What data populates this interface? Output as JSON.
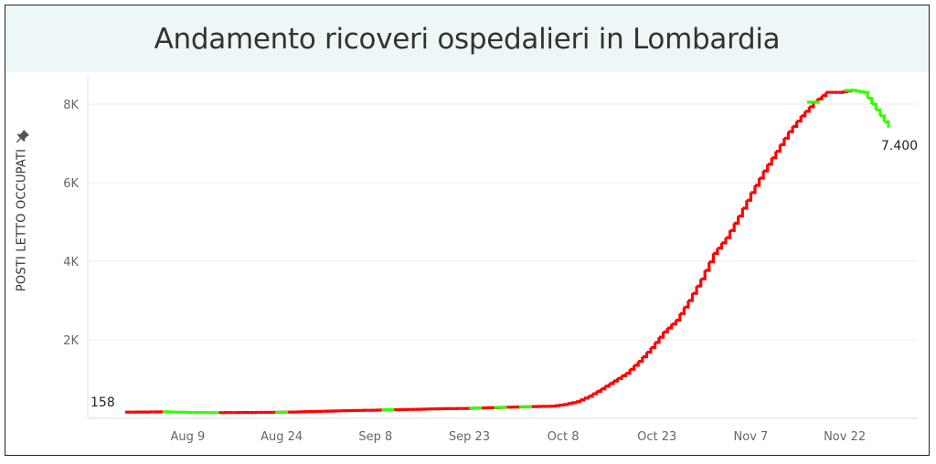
{
  "chart_data": {
    "type": "line",
    "title": "Andamento ricoveri ospedalieri in Lombardia",
    "ylabel": "POSTI LETTO OCCUPATI",
    "xlabel": "",
    "x_ticks": [
      "Aug 9",
      "Aug 24",
      "Sep 8",
      "Sep 23",
      "Oct 8",
      "Oct 23",
      "Nov 7",
      "Nov 22"
    ],
    "y_ticks": [
      "2K",
      "4K",
      "6K",
      "8K"
    ],
    "y_tick_values": [
      2000,
      4000,
      6000,
      8000
    ],
    "ylim": [
      0,
      8800
    ],
    "x_start": "2020-07-30",
    "x_end": "2020-11-29",
    "grid": "horizontal",
    "line_step": true,
    "colors": {
      "increase": "#ff0000",
      "decrease": "#33ff00"
    },
    "start_label": "158",
    "end_label": "7.400",
    "series": [
      {
        "x": [
          "2020-07-30",
          "2020-08-05",
          "2020-08-09",
          "2020-08-14",
          "2020-08-19",
          "2020-08-24",
          "2020-08-29",
          "2020-09-03",
          "2020-09-08",
          "2020-09-13",
          "2020-09-18",
          "2020-09-23",
          "2020-09-28",
          "2020-10-03",
          "2020-10-06",
          "2020-10-08",
          "2020-10-10",
          "2020-10-12",
          "2020-10-14",
          "2020-10-16",
          "2020-10-18",
          "2020-10-20",
          "2020-10-22",
          "2020-10-24",
          "2020-10-26",
          "2020-10-28",
          "2020-10-30",
          "2020-11-01",
          "2020-11-03",
          "2020-11-05",
          "2020-11-07",
          "2020-11-09",
          "2020-11-11",
          "2020-11-13",
          "2020-11-15",
          "2020-11-17",
          "2020-11-19",
          "2020-11-21",
          "2020-11-23",
          "2020-11-25",
          "2020-11-27",
          "2020-11-29"
        ],
        "y": [
          158,
          165,
          150,
          145,
          150,
          155,
          175,
          195,
          210,
          225,
          245,
          255,
          280,
          300,
          310,
          350,
          420,
          560,
          750,
          950,
          1150,
          1450,
          1800,
          2200,
          2500,
          3000,
          3550,
          4200,
          4600,
          5150,
          5750,
          6300,
          6800,
          7300,
          7700,
          8050,
          8300,
          8300,
          8350,
          8300,
          7850,
          7400
        ]
      }
    ]
  }
}
